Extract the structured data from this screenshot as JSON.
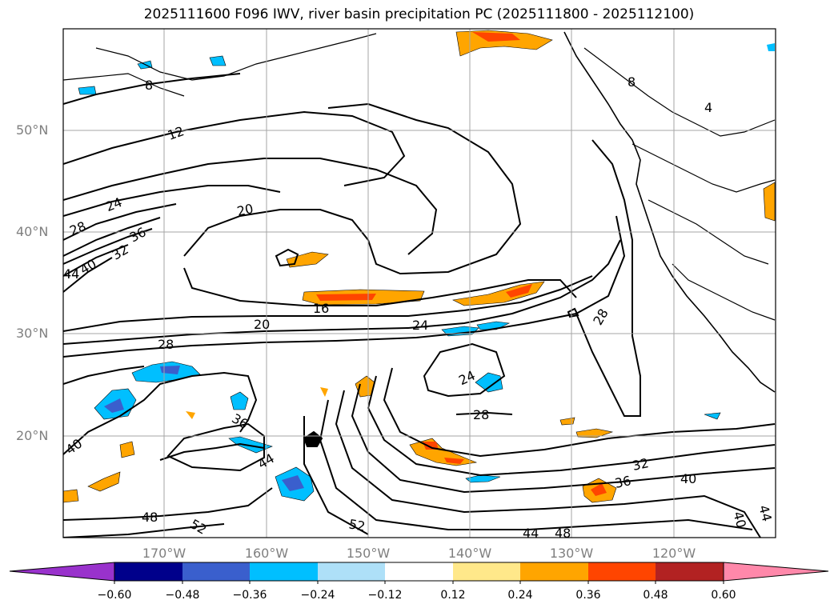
{
  "title": "2025111600 F096 IWV, river basin precipitation PC (2025111800 - 2025112100)",
  "map": {
    "lat_labels": [
      "50°N",
      "40°N",
      "30°N",
      "20°N"
    ],
    "lon_labels": [
      "170°W",
      "160°W",
      "150°W",
      "140°W",
      "130°W",
      "120°W"
    ],
    "contour_labels": [
      "8",
      "12",
      "24",
      "28",
      "36",
      "40",
      "32",
      "44",
      "20",
      "16",
      "20",
      "24",
      "28",
      "28",
      "24",
      "28",
      "36",
      "40",
      "44",
      "48",
      "52",
      "52",
      "44",
      "48",
      "32",
      "36",
      "40",
      "40",
      "44",
      "8",
      "4"
    ],
    "background_color": "#ffffff",
    "contour_color": "#000000"
  },
  "colorbar": {
    "ticks": [
      "−0.60",
      "−0.48",
      "−0.36",
      "−0.24",
      "−0.12",
      "0.12",
      "0.24",
      "0.36",
      "0.48",
      "0.60"
    ],
    "colors": [
      "#9932cc",
      "#00008b",
      "#3a5fcd",
      "#00bfff",
      "#aee0f8",
      "#ffffff",
      "#ffe88a",
      "#ffa500",
      "#ff4500",
      "#b22222",
      "#ff88aa"
    ]
  }
}
